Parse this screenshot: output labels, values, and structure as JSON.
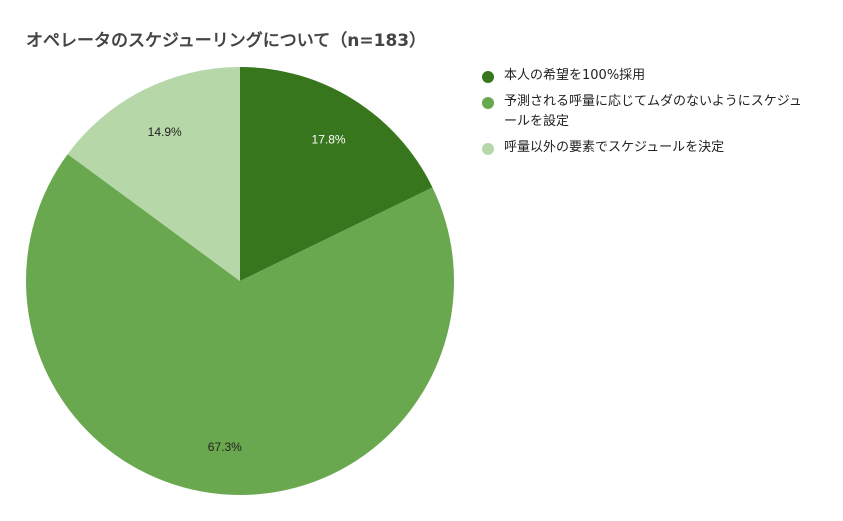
{
  "chart_data": {
    "type": "pie",
    "title": "オペレータのスケジューリングについて（n=183）",
    "categories": [
      "本人の希望を100%採用",
      "予測される呼量に応じてムダのないようにスケジュールを設定",
      "呼量以外の要素でスケジュールを決定"
    ],
    "values": [
      17.8,
      67.3,
      14.9
    ],
    "labels": [
      "17.8%",
      "67.3%",
      "14.9%"
    ],
    "colors": [
      "#38761d",
      "#6aa84f",
      "#b6d7a8"
    ],
    "label_colors": [
      "#ffffff",
      "#222222",
      "#222222"
    ],
    "legend_position": "right",
    "start_angle": "12 o'clock, clockwise"
  },
  "legend": {
    "items": [
      {
        "label": "本人の希望を100%採用",
        "color": "#38761d"
      },
      {
        "label": "予測される呼量に応じてムダのないようにスケジュールを設定",
        "color": "#6aa84f"
      },
      {
        "label": "呼量以外の要素でスケジュールを決定",
        "color": "#b6d7a8"
      }
    ]
  }
}
